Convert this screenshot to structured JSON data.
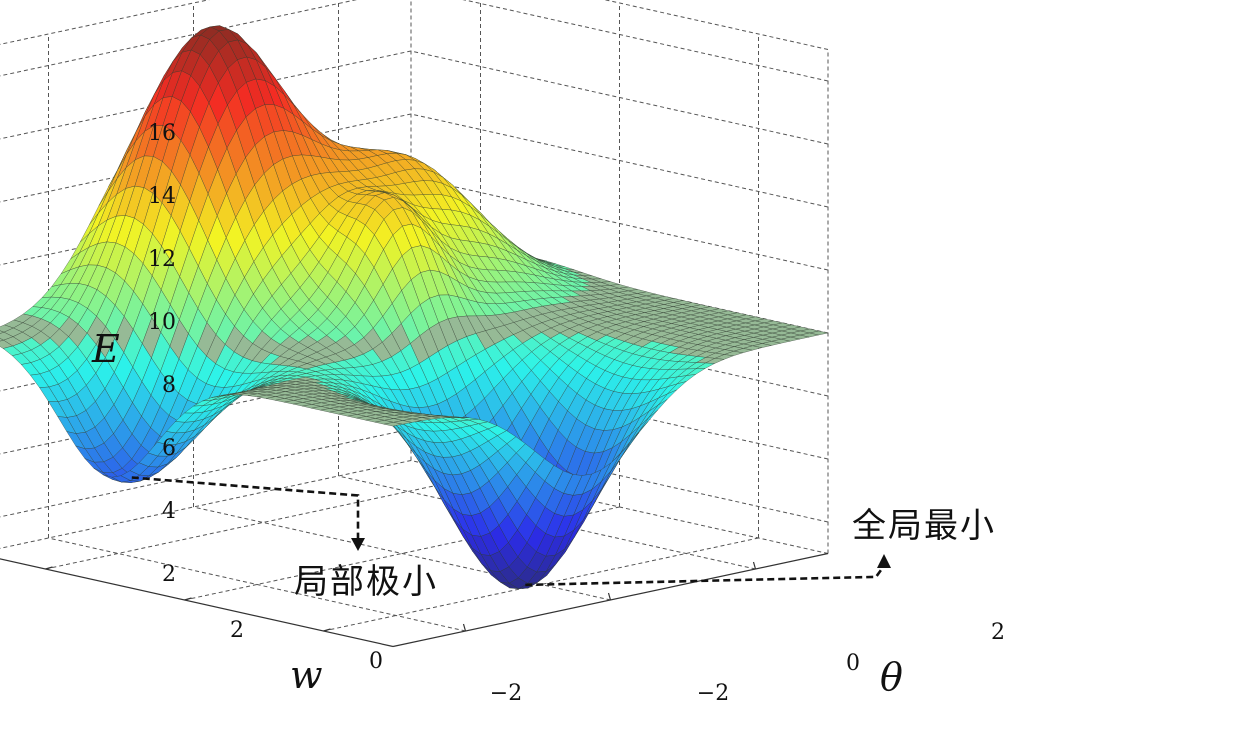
{
  "chart_data": {
    "type": "surface3d",
    "title": "",
    "xlabel": "θ",
    "ylabel": "w",
    "zlabel": "E",
    "xlim": [
      -3,
      3
    ],
    "ylim": [
      -3,
      3
    ],
    "zlim": [
      1,
      17
    ],
    "x_ticks": [
      "−2",
      "0",
      "2"
    ],
    "y_ticks": [
      "−2",
      "0",
      "2"
    ],
    "z_ticks": [
      "2",
      "4",
      "6",
      "8",
      "10",
      "12",
      "14",
      "16"
    ],
    "grid": true,
    "colormap": "jet",
    "baseline": 8,
    "components": [
      {
        "theta": -0.5,
        "w": 2.2,
        "amplitude": 8.8,
        "width": 0.8
      },
      {
        "theta": 1.3,
        "w": 1.3,
        "amplitude": 4.0,
        "width": 0.75
      },
      {
        "theta": 0.15,
        "w": 0.3,
        "amplitude": 3.0,
        "width": 0.45
      },
      {
        "theta": -2.7,
        "w": 1.1,
        "amplitude": -4.0,
        "width": 0.7
      },
      {
        "theta": -0.3,
        "w": -2.0,
        "amplitude": -7.0,
        "width": 0.75
      }
    ],
    "annotations": [
      {
        "text": "局部极小",
        "theta": -2.7,
        "w": 1.1,
        "E": 4.2
      },
      {
        "text": "全局最小",
        "theta": -0.3,
        "w": -2.0,
        "E": 1.2
      }
    ]
  }
}
